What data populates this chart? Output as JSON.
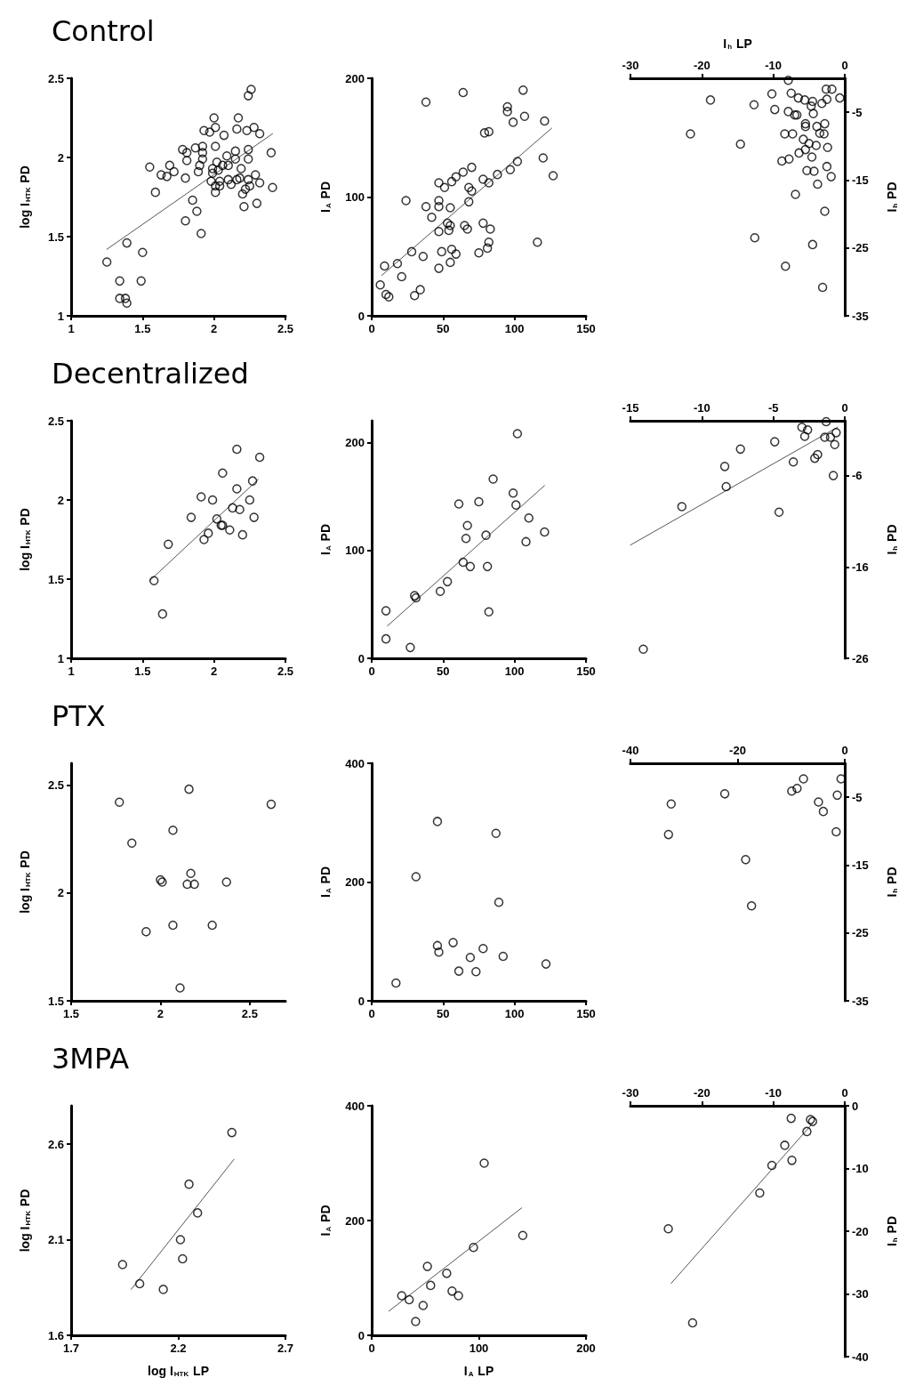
{
  "chart_data": [
    {
      "type": "scatter",
      "title": "Control",
      "ylabel": "log I$_{HTK}$ PD",
      "xlim": [
        1,
        2.5
      ],
      "xticks": [
        1,
        1.5,
        2,
        2.5
      ],
      "ylim": [
        1,
        2.5
      ],
      "yticks": [
        1,
        1.5,
        2,
        2.5
      ],
      "marker": "circle",
      "series": [
        {
          "color": "#000000",
          "x": [
            1.25,
            1.34,
            1.34,
            1.38,
            1.39,
            1.39,
            1.5,
            1.49,
            1.55,
            1.59,
            1.63,
            1.67,
            1.69,
            1.72,
            1.78,
            1.81,
            1.81,
            1.8,
            1.8,
            1.85,
            1.88,
            1.87,
            1.91,
            1.89,
            1.9,
            1.92,
            1.92,
            1.92,
            1.93,
            1.97,
            2.0,
            2.01,
            2.01,
            1.99,
            1.99,
            1.98,
            2.01,
            2.01,
            2.04,
            2.04,
            2.03,
            2.02,
            2.06,
            2.07,
            2.09,
            2.1,
            2.12,
            2.1,
            2.15,
            2.15,
            2.16,
            2.18,
            2.17,
            2.16,
            2.19,
            2.2,
            2.21,
            2.22,
            2.23,
            2.24,
            2.26,
            2.24,
            2.24,
            2.24,
            2.25,
            2.28,
            2.29,
            2.3,
            2.32,
            2.32,
            2.4,
            2.41
          ],
          "values": [
            1.34,
            1.22,
            1.11,
            1.11,
            1.08,
            1.46,
            1.4,
            1.22,
            1.94,
            1.78,
            1.89,
            1.88,
            1.95,
            1.91,
            2.05,
            2.03,
            1.98,
            1.87,
            1.6,
            1.73,
            1.66,
            2.06,
            1.52,
            1.91,
            1.95,
            2.07,
            2.03,
            1.99,
            2.17,
            2.16,
            2.25,
            2.19,
            2.07,
            1.93,
            1.9,
            1.85,
            1.82,
            1.78,
            1.82,
            1.85,
            1.92,
            1.97,
            1.95,
            2.14,
            2.01,
            1.86,
            1.83,
            1.95,
            1.99,
            2.04,
            1.86,
            1.87,
            2.25,
            2.18,
            1.93,
            1.77,
            1.69,
            1.8,
            2.17,
            2.39,
            2.43,
            2.05,
            1.99,
            1.86,
            1.82,
            2.19,
            1.89,
            1.71,
            2.15,
            1.84,
            2.03,
            1.81
          ]
        },
        {
          "type": "line",
          "color": "#555555",
          "marker": "none",
          "line_style": "solid",
          "x": [
            1.25,
            2.41
          ],
          "values": [
            1.42,
            2.15
          ]
        }
      ]
    },
    {
      "type": "scatter",
      "ylabel": "I$_{A}$ PD",
      "xlim": [
        0,
        150
      ],
      "xticks": [
        0,
        50,
        100,
        150
      ],
      "ylim": [
        0,
        200
      ],
      "yticks": [
        0,
        100,
        200
      ],
      "marker": "circle",
      "series": [
        {
          "color": "#000000",
          "x": [
            6,
            9,
            10,
            12,
            18,
            21,
            24,
            28,
            30,
            34,
            36,
            38,
            38,
            42,
            47,
            47,
            47,
            47,
            47,
            49,
            51,
            53,
            54,
            55,
            55,
            55,
            56,
            56,
            59,
            59,
            64,
            64,
            65,
            67,
            68,
            68,
            70,
            70,
            75,
            78,
            78,
            79,
            82,
            82,
            82,
            81,
            83,
            88,
            95,
            95,
            97,
            99,
            102,
            106,
            107,
            116,
            120,
            121,
            127
          ],
          "values": [
            26,
            42,
            18,
            16,
            44,
            33,
            97,
            54,
            17,
            22,
            50,
            180,
            92,
            83,
            92,
            97,
            71,
            40,
            112,
            54,
            108,
            78,
            72,
            76,
            91,
            45,
            113,
            56,
            52,
            117,
            188,
            121,
            76,
            73,
            108,
            96,
            105,
            125,
            53,
            78,
            115,
            154,
            155,
            112,
            62,
            57,
            73,
            119,
            176,
            172,
            123,
            163,
            130,
            190,
            168,
            62,
            133,
            164,
            118
          ]
        },
        {
          "type": "line",
          "color": "#555555",
          "marker": "none",
          "line_style": "solid",
          "x": [
            7,
            126
          ],
          "values": [
            34,
            158
          ]
        }
      ]
    },
    {
      "type": "scatter",
      "xlabel": "I$_{h}$ LP",
      "ylabel": "I$_{h}$ PD",
      "xlim": [
        -30,
        0
      ],
      "xticks": [
        -30,
        -20,
        -10,
        0
      ],
      "ylim": [
        -35,
        0
      ],
      "yticks": [
        -5,
        -15,
        -25,
        -35
      ],
      "marker": "circle",
      "series": [
        {
          "color": "#000000",
          "x": [
            -7.9,
            -10.2,
            -9.8,
            -7.5,
            -6.5,
            -5.6,
            -4.5,
            -4.7,
            -4.4,
            -3.2,
            -2.6,
            -1.8,
            -2.5,
            -0.7,
            -7.9,
            -7.0,
            -6.7,
            -5.5,
            -5.5,
            -3.9,
            -2.8,
            -3.5,
            -2.9,
            -8.4,
            -7.3,
            -5.8,
            -5.0,
            -4.0,
            -5.5,
            -6.4,
            -4.6,
            -2.4,
            -8.8,
            -7.8,
            -5.3,
            -4.3,
            -2.5,
            -1.9,
            -3.8,
            -6.9,
            -2.8,
            -18.8,
            -12.7,
            -21.6,
            -14.6,
            -12.6,
            -4.5,
            -8.3,
            -3.1
          ],
          "values": [
            -0.3,
            -2.3,
            -4.6,
            -2.2,
            -2.9,
            -3.2,
            -3.4,
            -4.1,
            -5.2,
            -3.7,
            -1.6,
            -1.6,
            -3.1,
            -2.9,
            -4.9,
            -5.4,
            -5.4,
            -6.7,
            -7.1,
            -7.1,
            -6.7,
            -8.1,
            -8.2,
            -8.2,
            -8.2,
            -9.0,
            -9.6,
            -9.9,
            -10.5,
            -11.0,
            -11.6,
            -10.2,
            -12.2,
            -11.9,
            -13.6,
            -13.7,
            -13.0,
            -14.5,
            -15.6,
            -17.1,
            -19.6,
            -3.2,
            -3.9,
            -8.2,
            -9.7,
            -23.5,
            -24.5,
            -27.7,
            -30.8
          ]
        }
      ]
    },
    {
      "type": "scatter",
      "title": "Decentralized",
      "ylabel": "log I$_{HTK}$ PD",
      "xlim": [
        1,
        2.5
      ],
      "xticks": [
        1,
        1.5,
        2,
        2.5
      ],
      "ylim": [
        1,
        2.5
      ],
      "yticks": [
        1,
        1.5,
        2,
        2.5
      ],
      "marker": "circle",
      "series": [
        {
          "color": "#000000",
          "x": [
            1.58,
            1.64,
            1.68,
            1.84,
            1.91,
            1.93,
            1.96,
            1.99,
            2.02,
            2.05,
            2.06,
            2.06,
            2.11,
            2.13,
            2.16,
            2.16,
            2.18,
            2.2,
            2.25,
            2.27,
            2.28,
            2.32
          ],
          "values": [
            1.49,
            1.28,
            1.72,
            1.89,
            2.02,
            1.75,
            1.79,
            2.0,
            1.88,
            1.84,
            1.84,
            2.17,
            1.81,
            1.95,
            2.07,
            2.32,
            1.94,
            1.78,
            2.0,
            2.12,
            1.89,
            2.27
          ]
        },
        {
          "type": "line",
          "color": "#555555",
          "marker": "none",
          "line_style": "solid",
          "x": [
            1.55,
            2.31
          ],
          "values": [
            1.49,
            2.13
          ]
        }
      ]
    },
    {
      "type": "scatter",
      "ylabel": "I$_{A}$ PD",
      "xlim": [
        0,
        150
      ],
      "xticks": [
        0,
        50,
        100,
        150
      ],
      "ylim": [
        0,
        220
      ],
      "yticks": [
        0,
        100,
        200
      ],
      "marker": "circle",
      "series": [
        {
          "color": "#000000",
          "x": [
            10,
            10,
            27,
            30,
            31,
            48,
            53,
            61,
            64,
            66,
            67,
            69,
            75,
            80,
            81,
            82,
            85,
            99,
            101,
            102,
            108,
            110,
            121
          ],
          "values": [
            44,
            18,
            10,
            58,
            56,
            62,
            71,
            143,
            89,
            111,
            123,
            85,
            145,
            114,
            85,
            43,
            166,
            153,
            142,
            208,
            108,
            130,
            117
          ]
        },
        {
          "type": "line",
          "color": "#555555",
          "marker": "none",
          "line_style": "solid",
          "x": [
            11,
            121
          ],
          "values": [
            30,
            160
          ]
        }
      ]
    },
    {
      "type": "scatter",
      "ylabel": "I$_{h}$ PD",
      "xlim": [
        -15,
        0
      ],
      "xticks": [
        -15,
        -10,
        -5,
        0
      ],
      "ylim": [
        -26,
        0
      ],
      "yticks": [
        -6,
        -16,
        -26
      ],
      "marker": "circle",
      "series": [
        {
          "color": "#000000",
          "x": [
            -14.1,
            -11.4,
            -8.4,
            -8.3,
            -7.3,
            -4.9,
            -4.6,
            -3.6,
            -3.0,
            -2.8,
            -2.6,
            -2.1,
            -1.9,
            -1.3,
            -1.4,
            -1.0,
            -0.6,
            -0.7,
            -0.8
          ],
          "values": [
            -25.0,
            -9.4,
            -5.0,
            -7.2,
            -3.1,
            -2.3,
            -10.0,
            -4.5,
            -0.7,
            -1.7,
            -1.0,
            -4.1,
            -3.7,
            -0.1,
            -1.8,
            -1.8,
            -1.3,
            -2.6,
            -6.0
          ]
        },
        {
          "type": "line",
          "color": "#555555",
          "marker": "none",
          "line_style": "solid",
          "x": [
            -15,
            -0.5
          ],
          "values": [
            -13.6,
            -0.7
          ]
        }
      ]
    },
    {
      "type": "scatter",
      "title": "PTX",
      "ylabel": "log I$_{HTK}$ PD",
      "xlim": [
        1.5,
        2.7
      ],
      "xticks": [
        1.5,
        2,
        2.5
      ],
      "ylim": [
        1.5,
        2.6
      ],
      "yticks": [
        1.5,
        2,
        2.5
      ],
      "marker": "circle",
      "series": [
        {
          "color": "#000000",
          "x": [
            1.77,
            1.84,
            1.92,
            2.0,
            2.01,
            2.07,
            2.07,
            2.11,
            2.16,
            2.17,
            2.15,
            2.19,
            2.29,
            2.37,
            2.62
          ],
          "values": [
            2.42,
            2.23,
            1.82,
            2.06,
            2.05,
            2.29,
            1.85,
            1.56,
            2.48,
            2.09,
            2.04,
            2.04,
            1.85,
            2.05,
            2.41
          ]
        }
      ]
    },
    {
      "type": "scatter",
      "ylabel": "I$_{A}$ PD",
      "xlim": [
        0,
        150
      ],
      "xticks": [
        0,
        50,
        100,
        150
      ],
      "ylim": [
        0,
        400
      ],
      "yticks": [
        0,
        200,
        400
      ],
      "marker": "circle",
      "series": [
        {
          "color": "#000000",
          "x": [
            17,
            31,
            46,
            46,
            47,
            57,
            61,
            69,
            73,
            78,
            87,
            89,
            92,
            122
          ],
          "values": [
            30,
            209,
            302,
            93,
            82,
            98,
            50,
            73,
            49,
            88,
            282,
            166,
            75,
            62
          ]
        }
      ]
    },
    {
      "type": "scatter",
      "ylabel": "I$_{h}$ PD",
      "xlim": [
        -40,
        0
      ],
      "xticks": [
        -40,
        -20,
        0
      ],
      "ylim": [
        -35,
        0
      ],
      "yticks": [
        -5,
        -15,
        -25,
        -35
      ],
      "marker": "circle",
      "series": [
        {
          "color": "#000000",
          "x": [
            -32.4,
            -32.9,
            -22.4,
            -18.5,
            -17.4,
            -9.9,
            -8.9,
            -7.7,
            -4.9,
            -4.0,
            -1.6,
            -1.4,
            -0.7
          ],
          "values": [
            -6.0,
            -10.5,
            -4.5,
            -14.2,
            -21.0,
            -4.1,
            -3.7,
            -2.3,
            -5.7,
            -7.1,
            -10.1,
            -4.7,
            -2.3
          ]
        }
      ]
    },
    {
      "type": "scatter",
      "title": "3MPA",
      "xlabel": "log I$_{HTK}$ LP",
      "ylabel": "log I$_{HTK}$ PD",
      "xlim": [
        1.7,
        2.7
      ],
      "xticks": [
        1.7,
        2.2,
        2.7
      ],
      "ylim": [
        1.6,
        2.8
      ],
      "yticks": [
        1.6,
        2.1,
        2.6
      ],
      "marker": "circle",
      "series": [
        {
          "color": "#000000",
          "x": [
            1.94,
            2.02,
            2.13,
            2.21,
            2.22,
            2.25,
            2.29,
            2.45
          ],
          "values": [
            1.97,
            1.87,
            1.84,
            2.1,
            2.0,
            2.39,
            2.24,
            2.66
          ]
        },
        {
          "type": "line",
          "color": "#555555",
          "marker": "none",
          "line_style": "solid",
          "x": [
            1.98,
            2.46
          ],
          "values": [
            1.84,
            2.52
          ]
        }
      ]
    },
    {
      "type": "scatter",
      "xlabel": "I$_{A}$ LP",
      "ylabel": "I$_{A}$ PD",
      "xlim": [
        0,
        200
      ],
      "xticks": [
        0,
        100,
        200
      ],
      "ylim": [
        0,
        400
      ],
      "yticks": [
        0,
        200,
        400
      ],
      "marker": "circle",
      "series": [
        {
          "color": "#000000",
          "x": [
            28,
            35,
            41,
            48,
            52,
            55,
            70,
            75,
            81,
            95,
            105,
            141
          ],
          "values": [
            69,
            62,
            24,
            52,
            120,
            87,
            108,
            77,
            69,
            153,
            300,
            174
          ]
        },
        {
          "type": "line",
          "color": "#555555",
          "marker": "none",
          "line_style": "solid",
          "x": [
            16,
            140
          ],
          "values": [
            42,
            222
          ]
        }
      ]
    },
    {
      "type": "scatter",
      "ylabel": "I$_{h}$ PD",
      "xlim": [
        -30,
        0
      ],
      "xticks": [
        -30,
        -20,
        -10,
        0
      ],
      "ylim": [
        -40,
        0
      ],
      "yticks": [
        0,
        -10,
        -20,
        -30,
        -40
      ],
      "marker": "circle",
      "series": [
        {
          "color": "#000000",
          "x": [
            -24.7,
            -21.3,
            -11.9,
            -10.2,
            -8.4,
            -7.4,
            -7.5,
            -5.3,
            -4.8,
            -4.5
          ],
          "values": [
            -19.6,
            -34.6,
            -13.9,
            -9.5,
            -6.3,
            -8.7,
            -2.0,
            -4.1,
            -2.2,
            -2.5
          ]
        },
        {
          "type": "line",
          "color": "#555555",
          "marker": "none",
          "line_style": "solid",
          "x": [
            -24.3,
            -4.5
          ],
          "values": [
            -28.3,
            -2.8
          ]
        }
      ]
    }
  ]
}
